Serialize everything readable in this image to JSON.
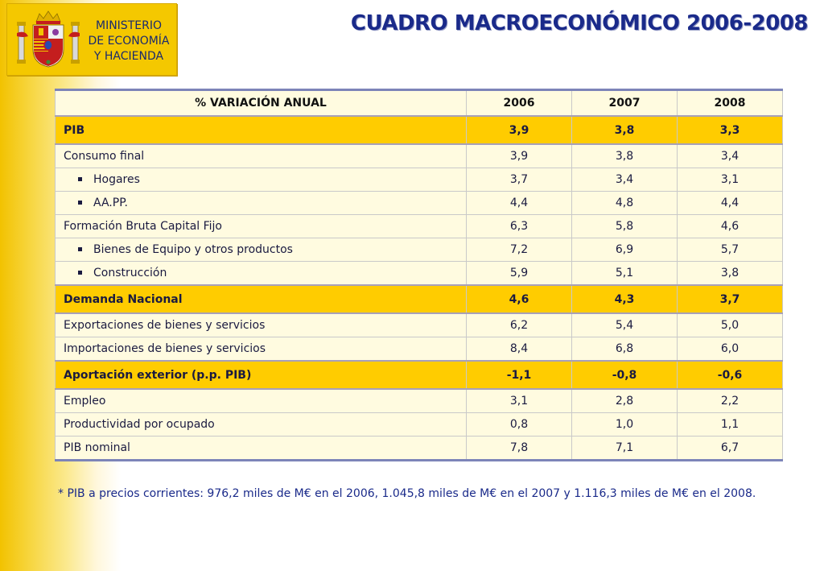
{
  "ministry": {
    "line1": "MINISTERIO",
    "line2": "DE ECONOMÍA",
    "line3": "Y HACIENDA"
  },
  "title": "CUADRO MACROECONÓMICO 2006-2008",
  "table": {
    "header": [
      "% VARIACIÓN ANUAL",
      "2006",
      "2007",
      "2008"
    ],
    "rows": [
      {
        "label": "PIB",
        "values": [
          "3,9",
          "3,8",
          "3,3"
        ]
      },
      {
        "label": "Consumo final",
        "values": [
          "3,9",
          "3,8",
          "3,4"
        ]
      },
      {
        "label": "Hogares",
        "values": [
          "3,7",
          "3,4",
          "3,1"
        ]
      },
      {
        "label": "AA.PP.",
        "values": [
          "4,4",
          "4,8",
          "4,4"
        ]
      },
      {
        "label": "Formación Bruta Capital Fijo",
        "values": [
          "6,3",
          "5,8",
          "4,6"
        ]
      },
      {
        "label": "Bienes de Equipo y otros productos",
        "values": [
          "7,2",
          "6,9",
          "5,7"
        ]
      },
      {
        "label": "Construcción",
        "values": [
          "5,9",
          "5,1",
          "3,8"
        ]
      },
      {
        "label": "Demanda Nacional",
        "values": [
          "4,6",
          "4,3",
          "3,7"
        ]
      },
      {
        "label": "Exportaciones de bienes y servicios",
        "values": [
          "6,2",
          "5,4",
          "5,0"
        ]
      },
      {
        "label": "Importaciones de bienes y servicios",
        "values": [
          "8,4",
          "6,8",
          "6,0"
        ]
      },
      {
        "label": "Aportación exterior (p.p. PIB)",
        "values": [
          "-1,1",
          "-0,8",
          "-0,6"
        ]
      },
      {
        "label": "Empleo",
        "values": [
          "3,1",
          "2,8",
          "2,2"
        ]
      },
      {
        "label": "Productividad por ocupado",
        "values": [
          "0,8",
          "1,0",
          "1,1"
        ]
      },
      {
        "label": "PIB nominal",
        "values": [
          "7,8",
          "7,1",
          "6,7"
        ]
      }
    ]
  },
  "footnote": "* PIB a precios corrientes: 976,2 miles de M€ en el 2006, 1.045,8 miles de M€ en el 2007 y 1.116,3 miles de M€ en el 2008.",
  "colors": {
    "highlight_row": "#ffcc00",
    "row_background": "#fffbe0",
    "title": "#1a2a8a",
    "logo_background": "#f4c800"
  },
  "icons": {
    "logo": "spanish-coat-of-arms-icon",
    "bullet": "square-bullet-icon"
  }
}
